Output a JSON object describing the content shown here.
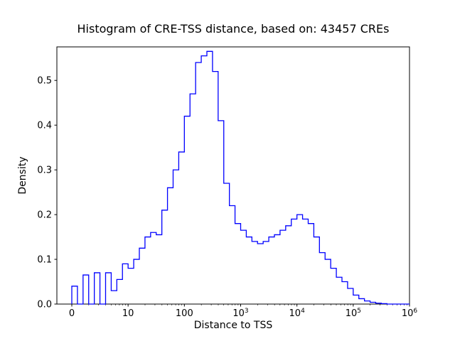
{
  "window": {
    "background": "#ffffff"
  },
  "colors": {
    "hist_line": "#0000ff",
    "axis": "#000000",
    "text": "#000000",
    "background": "#ffffff"
  },
  "chart_data": {
    "type": "histogram_step",
    "title": "Histogram of CRE-TSS distance, based on: 43457 CREs",
    "xlabel": "Distance to TSS",
    "ylabel": "Density",
    "n_cres": "43457",
    "x_scale": "symlog",
    "x_tick_labels": [
      "0",
      "10",
      "100",
      "10^3",
      "10^4",
      "10^5",
      "10^6"
    ],
    "x_tick_values": [
      0,
      10,
      100,
      1000,
      10000,
      100000,
      1000000
    ],
    "y_tick_labels": [
      "0.0",
      "0.1",
      "0.2",
      "0.3",
      "0.4",
      "0.5"
    ],
    "y_tick_values": [
      0.0,
      0.1,
      0.2,
      0.3,
      0.4,
      0.5
    ],
    "ylim": [
      0,
      0.575
    ],
    "xlim_log10": [
      0,
      6
    ],
    "grid": false,
    "legend": false,
    "bins": {
      "scale": "log10",
      "first_edge_log10": 0,
      "width_log10": 0.1,
      "count": 60
    },
    "densities": [
      0.04,
      0.0,
      0.065,
      0.0,
      0.07,
      0.0,
      0.07,
      0.03,
      0.055,
      0.09,
      0.08,
      0.1,
      0.125,
      0.15,
      0.16,
      0.155,
      0.21,
      0.26,
      0.3,
      0.34,
      0.42,
      0.47,
      0.54,
      0.555,
      0.565,
      0.52,
      0.41,
      0.27,
      0.22,
      0.18,
      0.165,
      0.15,
      0.14,
      0.135,
      0.14,
      0.15,
      0.155,
      0.165,
      0.175,
      0.19,
      0.2,
      0.19,
      0.18,
      0.15,
      0.115,
      0.1,
      0.08,
      0.06,
      0.05,
      0.035,
      0.02,
      0.012,
      0.007,
      0.004,
      0.002,
      0.001,
      0.0,
      0.0,
      0.0,
      0.0
    ]
  }
}
